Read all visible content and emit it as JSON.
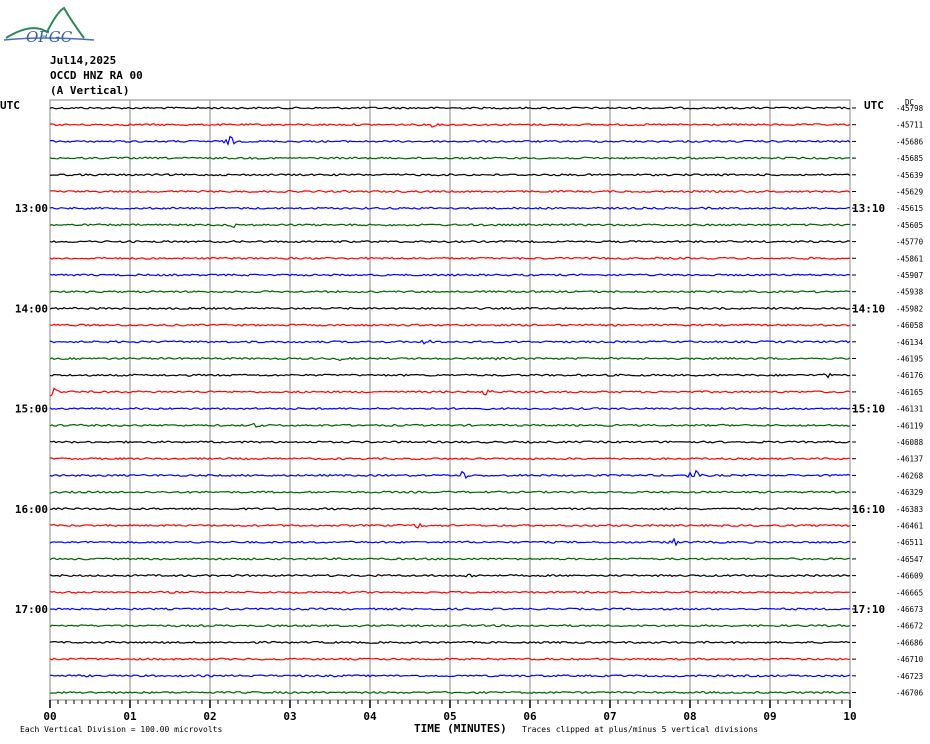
{
  "logo_text": "OFGC",
  "header": {
    "date": "Jul14,2025",
    "station": "OCCD HNZ RA 00",
    "component": "(A Vertical)"
  },
  "left_axis_label": "UTC",
  "right_axis_label": "UTC",
  "dc_label": "DC",
  "footer": {
    "scale_note": "Each Vertical Division =  100.00 microvolts",
    "x_title": "TIME (MINUTES)",
    "clip_note": "Traces clipped at plus/minus 5 vertical divisions"
  },
  "chart_data": {
    "type": "line",
    "x_ticks": [
      "00",
      "01",
      "02",
      "03",
      "04",
      "05",
      "06",
      "07",
      "08",
      "09",
      "10"
    ],
    "xlim": [
      0,
      10
    ],
    "left_hour_labels": [
      {
        "row": 6,
        "label": "13:00"
      },
      {
        "row": 12,
        "label": "14:00"
      },
      {
        "row": 18,
        "label": "15:00"
      },
      {
        "row": 24,
        "label": "16:00"
      },
      {
        "row": 30,
        "label": "17:00"
      }
    ],
    "right_hour_labels": [
      {
        "row": 6,
        "label": "13:10"
      },
      {
        "row": 12,
        "label": "14:10"
      },
      {
        "row": 18,
        "label": "15:10"
      },
      {
        "row": 24,
        "label": "16:10"
      },
      {
        "row": 30,
        "label": "17:10"
      }
    ],
    "trace_colors": [
      "#000000",
      "#ff0000",
      "#0000ff",
      "#006400"
    ],
    "dc_offsets": [
      "-45798",
      "-45711",
      "-45686",
      "-45685",
      "-45639",
      "-45629",
      "-45615",
      "-45605",
      "-45770",
      "-45861",
      "-45907",
      "-45938",
      "-45982",
      "-46058",
      "-46134",
      "-46195",
      "-46176",
      "-46165",
      "-46131",
      "-46119",
      "-46088",
      "-46137",
      "-46268",
      "-46329",
      "-46383",
      "-46461",
      "-46511",
      "-46547",
      "-46609",
      "-46665",
      "-46673",
      "-46672",
      "-46686",
      "-46710",
      "-46723",
      "-46706"
    ],
    "events": [
      {
        "row": 2,
        "x": 2.25,
        "amp": 5
      },
      {
        "row": 1,
        "x": 4.75,
        "amp": 3
      },
      {
        "row": 7,
        "x": 2.3,
        "amp": 3
      },
      {
        "row": 14,
        "x": 4.7,
        "amp": 4
      },
      {
        "row": 15,
        "x": 3.6,
        "amp": 3
      },
      {
        "row": 15,
        "x": 5.6,
        "amp": 3
      },
      {
        "row": 16,
        "x": 9.7,
        "amp": 3
      },
      {
        "row": 17,
        "x": 0.03,
        "amp": 7
      },
      {
        "row": 17,
        "x": 5.45,
        "amp": 4
      },
      {
        "row": 19,
        "x": 2.55,
        "amp": 3
      },
      {
        "row": 22,
        "x": 5.15,
        "amp": 5
      },
      {
        "row": 22,
        "x": 8.05,
        "amp": 6
      },
      {
        "row": 25,
        "x": 4.6,
        "amp": 3
      },
      {
        "row": 26,
        "x": 7.8,
        "amp": 4
      },
      {
        "row": 28,
        "x": 5.25,
        "amp": 3
      }
    ]
  }
}
